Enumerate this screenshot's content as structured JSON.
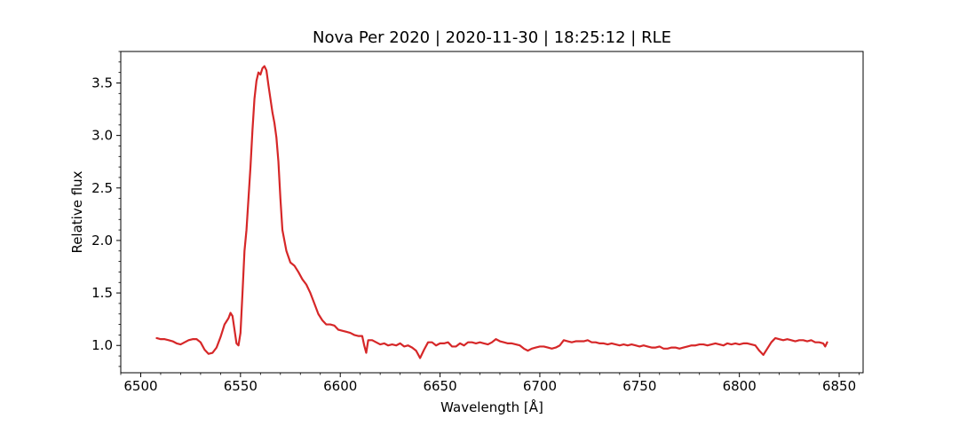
{
  "chart_data": {
    "type": "line",
    "title": "Nova Per 2020 | 2020-11-30 | 18:25:12 | RLE",
    "xlabel": "Wavelength [Å]",
    "ylabel": "Relative flux",
    "xlim": [
      6490,
      6862
    ],
    "ylim": [
      0.74,
      3.8
    ],
    "xticks": [
      6500,
      6550,
      6600,
      6650,
      6700,
      6750,
      6800,
      6850
    ],
    "yticks": [
      1.0,
      1.5,
      2.0,
      2.5,
      3.0,
      3.5
    ],
    "xtick_labels": [
      "6500",
      "6550",
      "6600",
      "6650",
      "6700",
      "6750",
      "6800",
      "6850"
    ],
    "ytick_labels": [
      "1.0",
      "1.5",
      "2.0",
      "2.5",
      "3.0",
      "3.5"
    ],
    "x_minor_step": 10,
    "y_minor_step": 0.1,
    "grid": false,
    "legend": "none",
    "series": [
      {
        "color": "#d62728",
        "points": [
          [
            6508,
            1.07
          ],
          [
            6510,
            1.06
          ],
          [
            6512,
            1.06
          ],
          [
            6514,
            1.05
          ],
          [
            6516,
            1.04
          ],
          [
            6518,
            1.02
          ],
          [
            6520,
            1.01
          ],
          [
            6522,
            1.03
          ],
          [
            6524,
            1.05
          ],
          [
            6526,
            1.06
          ],
          [
            6528,
            1.06
          ],
          [
            6530,
            1.03
          ],
          [
            6532,
            0.96
          ],
          [
            6534,
            0.92
          ],
          [
            6536,
            0.93
          ],
          [
            6538,
            0.98
          ],
          [
            6540,
            1.08
          ],
          [
            6542,
            1.2
          ],
          [
            6544,
            1.26
          ],
          [
            6545,
            1.31
          ],
          [
            6546,
            1.28
          ],
          [
            6547,
            1.15
          ],
          [
            6548,
            1.02
          ],
          [
            6549,
            1.0
          ],
          [
            6550,
            1.12
          ],
          [
            6551,
            1.5
          ],
          [
            6552,
            1.9
          ],
          [
            6553,
            2.1
          ],
          [
            6554,
            2.4
          ],
          [
            6555,
            2.7
          ],
          [
            6556,
            3.05
          ],
          [
            6557,
            3.35
          ],
          [
            6558,
            3.52
          ],
          [
            6559,
            3.6
          ],
          [
            6560,
            3.58
          ],
          [
            6561,
            3.64
          ],
          [
            6562,
            3.66
          ],
          [
            6563,
            3.62
          ],
          [
            6564,
            3.48
          ],
          [
            6565,
            3.35
          ],
          [
            6566,
            3.22
          ],
          [
            6567,
            3.12
          ],
          [
            6568,
            2.98
          ],
          [
            6569,
            2.75
          ],
          [
            6570,
            2.4
          ],
          [
            6571,
            2.1
          ],
          [
            6572,
            2.0
          ],
          [
            6573,
            1.9
          ],
          [
            6575,
            1.79
          ],
          [
            6577,
            1.76
          ],
          [
            6579,
            1.7
          ],
          [
            6581,
            1.63
          ],
          [
            6583,
            1.58
          ],
          [
            6585,
            1.5
          ],
          [
            6587,
            1.4
          ],
          [
            6589,
            1.3
          ],
          [
            6591,
            1.24
          ],
          [
            6593,
            1.2
          ],
          [
            6595,
            1.2
          ],
          [
            6597,
            1.19
          ],
          [
            6599,
            1.15
          ],
          [
            6601,
            1.14
          ],
          [
            6603,
            1.13
          ],
          [
            6605,
            1.12
          ],
          [
            6607,
            1.1
          ],
          [
            6609,
            1.09
          ],
          [
            6611,
            1.09
          ],
          [
            6612,
            1.0
          ],
          [
            6613,
            0.93
          ],
          [
            6614,
            1.05
          ],
          [
            6616,
            1.05
          ],
          [
            6618,
            1.03
          ],
          [
            6620,
            1.01
          ],
          [
            6622,
            1.02
          ],
          [
            6624,
            1.0
          ],
          [
            6626,
            1.01
          ],
          [
            6628,
            1.0
          ],
          [
            6630,
            1.02
          ],
          [
            6632,
            0.99
          ],
          [
            6634,
            1.0
          ],
          [
            6636,
            0.98
          ],
          [
            6638,
            0.95
          ],
          [
            6640,
            0.88
          ],
          [
            6642,
            0.96
          ],
          [
            6644,
            1.03
          ],
          [
            6646,
            1.03
          ],
          [
            6648,
            1.0
          ],
          [
            6650,
            1.02
          ],
          [
            6652,
            1.02
          ],
          [
            6654,
            1.03
          ],
          [
            6656,
            0.99
          ],
          [
            6658,
            0.99
          ],
          [
            6660,
            1.02
          ],
          [
            6662,
            1.0
          ],
          [
            6664,
            1.03
          ],
          [
            6666,
            1.03
          ],
          [
            6668,
            1.02
          ],
          [
            6670,
            1.03
          ],
          [
            6672,
            1.02
          ],
          [
            6674,
            1.01
          ],
          [
            6676,
            1.03
          ],
          [
            6678,
            1.06
          ],
          [
            6680,
            1.04
          ],
          [
            6682,
            1.03
          ],
          [
            6684,
            1.02
          ],
          [
            6686,
            1.02
          ],
          [
            6688,
            1.01
          ],
          [
            6690,
            1.0
          ],
          [
            6692,
            0.97
          ],
          [
            6694,
            0.95
          ],
          [
            6696,
            0.97
          ],
          [
            6698,
            0.98
          ],
          [
            6700,
            0.99
          ],
          [
            6702,
            0.99
          ],
          [
            6704,
            0.98
          ],
          [
            6706,
            0.97
          ],
          [
            6708,
            0.98
          ],
          [
            6710,
            1.0
          ],
          [
            6712,
            1.05
          ],
          [
            6714,
            1.04
          ],
          [
            6716,
            1.03
          ],
          [
            6718,
            1.04
          ],
          [
            6720,
            1.04
          ],
          [
            6722,
            1.04
          ],
          [
            6724,
            1.05
          ],
          [
            6726,
            1.03
          ],
          [
            6728,
            1.03
          ],
          [
            6730,
            1.02
          ],
          [
            6732,
            1.02
          ],
          [
            6734,
            1.01
          ],
          [
            6736,
            1.02
          ],
          [
            6738,
            1.01
          ],
          [
            6740,
            1.0
          ],
          [
            6742,
            1.01
          ],
          [
            6744,
            1.0
          ],
          [
            6746,
            1.01
          ],
          [
            6748,
            1.0
          ],
          [
            6750,
            0.99
          ],
          [
            6752,
            1.0
          ],
          [
            6754,
            0.99
          ],
          [
            6756,
            0.98
          ],
          [
            6758,
            0.98
          ],
          [
            6760,
            0.99
          ],
          [
            6762,
            0.97
          ],
          [
            6764,
            0.97
          ],
          [
            6766,
            0.98
          ],
          [
            6768,
            0.98
          ],
          [
            6770,
            0.97
          ],
          [
            6772,
            0.98
          ],
          [
            6774,
            0.99
          ],
          [
            6776,
            1.0
          ],
          [
            6778,
            1.0
          ],
          [
            6780,
            1.01
          ],
          [
            6782,
            1.01
          ],
          [
            6784,
            1.0
          ],
          [
            6786,
            1.01
          ],
          [
            6788,
            1.02
          ],
          [
            6790,
            1.01
          ],
          [
            6792,
            1.0
          ],
          [
            6794,
            1.02
          ],
          [
            6796,
            1.01
          ],
          [
            6798,
            1.02
          ],
          [
            6800,
            1.01
          ],
          [
            6802,
            1.02
          ],
          [
            6804,
            1.02
          ],
          [
            6806,
            1.01
          ],
          [
            6808,
            1.0
          ],
          [
            6810,
            0.95
          ],
          [
            6812,
            0.91
          ],
          [
            6814,
            0.97
          ],
          [
            6816,
            1.03
          ],
          [
            6818,
            1.07
          ],
          [
            6820,
            1.06
          ],
          [
            6822,
            1.05
          ],
          [
            6824,
            1.06
          ],
          [
            6826,
            1.05
          ],
          [
            6828,
            1.04
          ],
          [
            6830,
            1.05
          ],
          [
            6832,
            1.05
          ],
          [
            6834,
            1.04
          ],
          [
            6836,
            1.05
          ],
          [
            6838,
            1.03
          ],
          [
            6840,
            1.03
          ],
          [
            6842,
            1.02
          ],
          [
            6843,
            0.99
          ],
          [
            6844,
            1.03
          ]
        ]
      }
    ]
  }
}
